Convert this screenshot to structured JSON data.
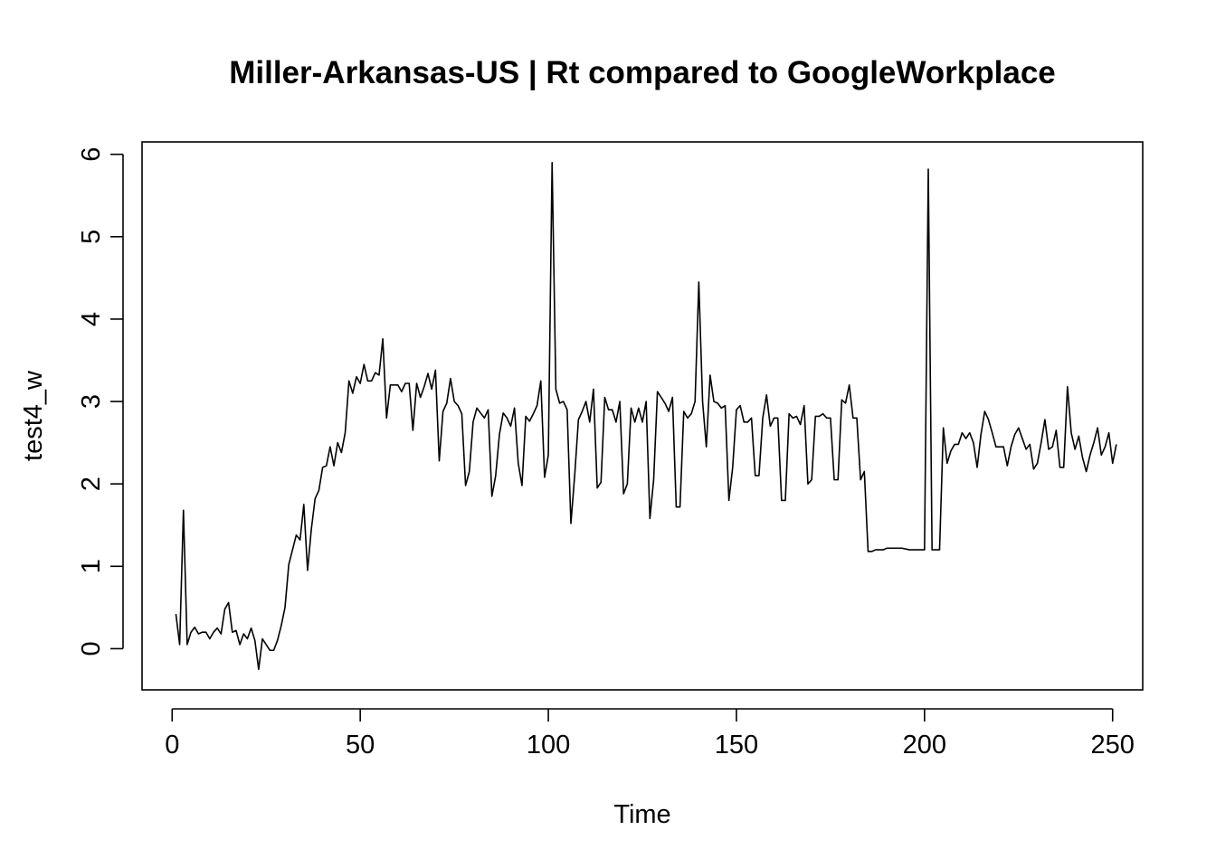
{
  "chart_data": {
    "type": "line",
    "title": "Miller-Arkansas-US | Rt compared to GoogleWorkplace",
    "xlabel": "Time",
    "ylabel": "test4_w",
    "xlim": [
      -8,
      258
    ],
    "ylim": [
      -0.5,
      6.15
    ],
    "x_ticks": [
      0,
      50,
      100,
      150,
      200,
      250
    ],
    "y_ticks": [
      0,
      1,
      2,
      3,
      4,
      5,
      6
    ],
    "x_tick_labels": [
      "0",
      "50",
      "100",
      "150",
      "200",
      "250"
    ],
    "y_tick_labels": [
      "0",
      "1",
      "2",
      "3",
      "4",
      "5",
      "6"
    ],
    "grid": false,
    "series": [
      {
        "x_start": 1,
        "values": [
          0.42,
          0.05,
          1.68,
          0.05,
          0.2,
          0.26,
          0.18,
          0.2,
          0.2,
          0.12,
          0.2,
          0.25,
          0.18,
          0.48,
          0.56,
          0.2,
          0.22,
          0.05,
          0.18,
          0.12,
          0.25,
          0.1,
          -0.25,
          0.12,
          0.05,
          -0.02,
          -0.02,
          0.1,
          0.28,
          0.5,
          1.02,
          1.2,
          1.38,
          1.32,
          1.75,
          0.95,
          1.45,
          1.82,
          1.92,
          2.2,
          2.22,
          2.45,
          2.22,
          2.5,
          2.38,
          2.62,
          3.25,
          3.1,
          3.3,
          3.22,
          3.45,
          3.25,
          3.25,
          3.35,
          3.32,
          3.76,
          2.8,
          3.2,
          3.2,
          3.2,
          3.12,
          3.22,
          3.22,
          2.65,
          3.22,
          3.05,
          3.18,
          3.34,
          3.15,
          3.38,
          2.28,
          2.88,
          2.98,
          3.28,
          3.0,
          2.95,
          2.85,
          1.98,
          2.15,
          2.75,
          2.92,
          2.86,
          2.8,
          2.9,
          1.85,
          2.1,
          2.6,
          2.86,
          2.8,
          2.7,
          2.92,
          2.25,
          1.98,
          2.82,
          2.76,
          2.85,
          2.95,
          3.25,
          2.08,
          2.35,
          5.9,
          3.15,
          2.98,
          3.0,
          2.9,
          1.52,
          2.1,
          2.78,
          2.88,
          3.0,
          2.75,
          3.15,
          1.95,
          2.02,
          3.05,
          2.9,
          2.9,
          2.75,
          3.0,
          1.88,
          2.0,
          2.92,
          2.75,
          2.92,
          2.75,
          3.0,
          1.58,
          2.05,
          3.12,
          3.05,
          2.98,
          2.88,
          3.05,
          1.72,
          1.72,
          2.88,
          2.8,
          2.85,
          3.0,
          4.45,
          3.0,
          2.45,
          3.32,
          3.0,
          2.98,
          2.92,
          2.95,
          1.8,
          2.2,
          2.9,
          2.95,
          2.75,
          2.75,
          2.8,
          2.1,
          2.1,
          2.8,
          3.08,
          2.7,
          2.8,
          2.8,
          1.8,
          1.8,
          2.85,
          2.8,
          2.82,
          2.72,
          2.95,
          2.0,
          2.05,
          2.82,
          2.82,
          2.85,
          2.8,
          2.8,
          2.05,
          2.05,
          3.02,
          2.98,
          3.2,
          2.8,
          2.8,
          2.05,
          2.15,
          1.18,
          1.18,
          1.2,
          1.2,
          1.2,
          1.22,
          1.22,
          1.22,
          1.22,
          1.22,
          1.21,
          1.2,
          1.2,
          1.2,
          1.2,
          1.2,
          5.82,
          1.2,
          1.2,
          1.2,
          2.68,
          2.25,
          2.4,
          2.48,
          2.48,
          2.62,
          2.55,
          2.62,
          2.5,
          2.2,
          2.6,
          2.88,
          2.78,
          2.62,
          2.45,
          2.45,
          2.45,
          2.22,
          2.45,
          2.6,
          2.68,
          2.55,
          2.42,
          2.48,
          2.18,
          2.25,
          2.5,
          2.78,
          2.42,
          2.45,
          2.65,
          2.2,
          2.2,
          3.18,
          2.62,
          2.42,
          2.58,
          2.32,
          2.15,
          2.35,
          2.5,
          2.68,
          2.35,
          2.45,
          2.62,
          2.25,
          2.48
        ]
      }
    ]
  }
}
